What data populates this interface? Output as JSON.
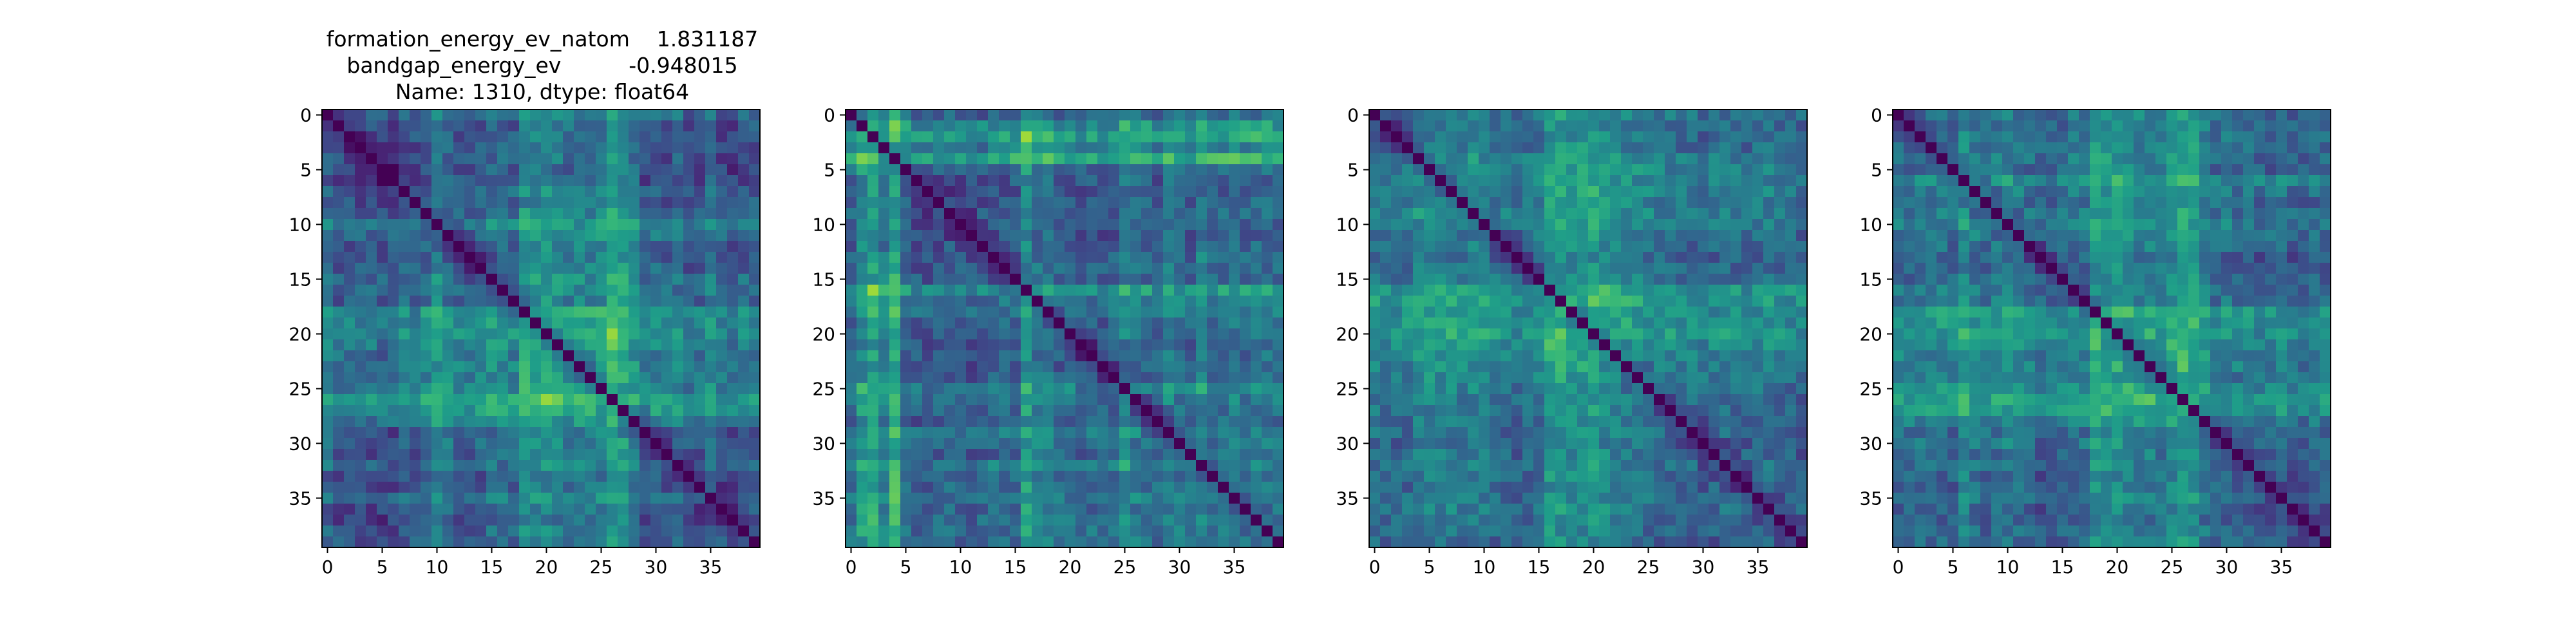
{
  "figure": {
    "title_lines": [
      "formation_energy_ev_natom    1.831187",
      "bandgap_energy_ev          -0.948015",
      "Name: 1310, dtype: float64"
    ]
  },
  "chart_data": [
    {
      "type": "heatmap",
      "title": "",
      "size": [
        40,
        40
      ],
      "x_ticks": [
        0,
        5,
        10,
        15,
        20,
        25,
        30,
        35
      ],
      "y_ticks": [
        0,
        5,
        10,
        15,
        20,
        25,
        30,
        35
      ],
      "colormap": "viridis",
      "vrange": [
        0,
        1
      ],
      "grid": false,
      "row_levels": [
        0.55,
        0.38,
        0.44,
        0.4,
        0.47,
        0.35,
        0.42,
        0.5,
        0.39,
        0.45,
        0.58,
        0.52,
        0.48,
        0.43,
        0.6,
        0.57,
        0.51,
        0.49,
        0.72,
        0.68,
        0.7,
        0.62,
        0.55,
        0.64,
        0.59,
        0.66,
        0.78,
        0.74,
        0.61,
        0.47,
        0.52,
        0.44,
        0.49,
        0.41,
        0.46,
        0.53,
        0.43,
        0.4,
        0.45,
        0.48
      ],
      "col_levels": [
        0.52,
        0.47,
        0.4,
        0.44,
        0.38,
        0.42,
        0.36,
        0.45,
        0.5,
        0.6,
        0.66,
        0.58,
        0.5,
        0.46,
        0.39,
        0.55,
        0.58,
        0.52,
        0.68,
        0.7,
        0.74,
        0.67,
        0.63,
        0.6,
        0.65,
        0.66,
        0.8,
        0.76,
        0.62,
        0.44,
        0.5,
        0.47,
        0.52,
        0.42,
        0.45,
        0.55,
        0.41,
        0.4,
        0.48,
        0.46
      ],
      "seed": 11
    },
    {
      "type": "heatmap",
      "title": "",
      "size": [
        40,
        40
      ],
      "x_ticks": [
        0,
        5,
        10,
        15,
        20,
        25,
        30,
        35
      ],
      "y_ticks": [
        0,
        5,
        10,
        15,
        20,
        25,
        30,
        35
      ],
      "colormap": "viridis",
      "vrange": [
        0,
        1
      ],
      "grid": false,
      "row_levels": [
        0.45,
        0.72,
        0.8,
        0.62,
        0.85,
        0.5,
        0.42,
        0.4,
        0.44,
        0.46,
        0.41,
        0.39,
        0.43,
        0.45,
        0.48,
        0.42,
        0.7,
        0.55,
        0.5,
        0.47,
        0.52,
        0.44,
        0.49,
        0.4,
        0.45,
        0.6,
        0.55,
        0.5,
        0.46,
        0.58,
        0.52,
        0.48,
        0.66,
        0.5,
        0.47,
        0.44,
        0.52,
        0.48,
        0.55,
        0.5
      ],
      "col_levels": [
        0.55,
        0.7,
        0.8,
        0.6,
        0.85,
        0.55,
        0.44,
        0.42,
        0.45,
        0.5,
        0.48,
        0.46,
        0.44,
        0.5,
        0.47,
        0.55,
        0.78,
        0.62,
        0.66,
        0.5,
        0.52,
        0.45,
        0.44,
        0.5,
        0.52,
        0.66,
        0.56,
        0.52,
        0.5,
        0.6,
        0.54,
        0.5,
        0.62,
        0.56,
        0.6,
        0.7,
        0.55,
        0.62,
        0.58,
        0.55
      ],
      "seed": 23
    },
    {
      "type": "heatmap",
      "title": "",
      "size": [
        40,
        40
      ],
      "x_ticks": [
        0,
        5,
        10,
        15,
        20,
        25,
        30,
        35
      ],
      "y_ticks": [
        0,
        5,
        10,
        15,
        20,
        25,
        30,
        35
      ],
      "colormap": "viridis",
      "vrange": [
        0,
        1
      ],
      "grid": false,
      "row_levels": [
        0.58,
        0.5,
        0.47,
        0.44,
        0.52,
        0.48,
        0.55,
        0.6,
        0.57,
        0.62,
        0.6,
        0.54,
        0.5,
        0.48,
        0.55,
        0.6,
        0.76,
        0.74,
        0.7,
        0.66,
        0.68,
        0.63,
        0.6,
        0.58,
        0.55,
        0.52,
        0.5,
        0.48,
        0.46,
        0.49,
        0.45,
        0.47,
        0.5,
        0.46,
        0.44,
        0.48,
        0.52,
        0.47,
        0.45,
        0.43
      ],
      "col_levels": [
        0.5,
        0.48,
        0.52,
        0.6,
        0.68,
        0.74,
        0.66,
        0.6,
        0.55,
        0.58,
        0.56,
        0.5,
        0.48,
        0.47,
        0.45,
        0.5,
        0.7,
        0.74,
        0.68,
        0.72,
        0.75,
        0.7,
        0.66,
        0.62,
        0.6,
        0.56,
        0.54,
        0.55,
        0.52,
        0.5,
        0.48,
        0.5,
        0.53,
        0.5,
        0.48,
        0.52,
        0.55,
        0.5,
        0.48,
        0.46
      ],
      "seed": 37
    },
    {
      "type": "heatmap",
      "title": "",
      "size": [
        40,
        40
      ],
      "x_ticks": [
        0,
        5,
        10,
        15,
        20,
        25,
        30,
        35
      ],
      "y_ticks": [
        0,
        5,
        10,
        15,
        20,
        25,
        30,
        35
      ],
      "colormap": "viridis",
      "vrange": [
        0,
        1
      ],
      "grid": false,
      "row_levels": [
        0.55,
        0.42,
        0.45,
        0.4,
        0.47,
        0.44,
        0.52,
        0.48,
        0.44,
        0.46,
        0.5,
        0.53,
        0.49,
        0.45,
        0.5,
        0.48,
        0.55,
        0.52,
        0.7,
        0.66,
        0.72,
        0.64,
        0.6,
        0.63,
        0.58,
        0.66,
        0.74,
        0.7,
        0.58,
        0.5,
        0.52,
        0.47,
        0.49,
        0.44,
        0.46,
        0.5,
        0.45,
        0.42,
        0.46,
        0.48
      ],
      "col_levels": [
        0.52,
        0.58,
        0.62,
        0.66,
        0.6,
        0.54,
        0.8,
        0.64,
        0.6,
        0.66,
        0.68,
        0.56,
        0.5,
        0.45,
        0.42,
        0.5,
        0.56,
        0.54,
        0.74,
        0.72,
        0.7,
        0.66,
        0.62,
        0.64,
        0.6,
        0.7,
        0.78,
        0.74,
        0.62,
        0.5,
        0.52,
        0.48,
        0.52,
        0.45,
        0.47,
        0.53,
        0.44,
        0.42,
        0.46,
        0.47
      ],
      "seed": 53
    }
  ]
}
